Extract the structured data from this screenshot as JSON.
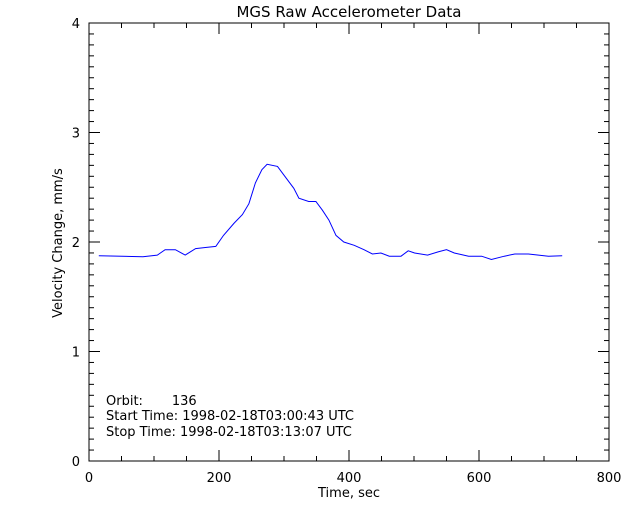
{
  "chart_data": {
    "type": "line",
    "title": "MGS Raw Accelerometer Data",
    "xlabel": "Time, sec",
    "ylabel": "Velocity Change, mm/s",
    "xlim": [
      0,
      800
    ],
    "ylim": [
      0,
      4
    ],
    "x_ticks": [
      "0",
      "200",
      "400",
      "600",
      "800"
    ],
    "y_ticks": [
      "0",
      "1",
      "2",
      "3",
      "4"
    ],
    "grid": false,
    "line_color": "#0000ff",
    "annotations": [
      "Orbit:       136",
      "Start Time: 1998-02-18T03:00:43 UTC",
      "Stop Time: 1998-02-18T03:13:07 UTC"
    ],
    "series": [
      {
        "x": [
          15,
          83,
          105,
          117,
          133,
          148,
          164,
          179,
          195,
          207,
          223,
          236,
          246,
          256,
          266,
          274,
          290,
          300,
          315,
          323,
          338,
          349,
          359,
          369,
          380,
          392,
          408,
          423,
          436,
          449,
          462,
          480,
          491,
          501,
          521,
          537,
          550,
          562,
          584,
          604,
          619,
          639,
          655,
          676,
          707,
          728
        ],
        "y": [
          1.875,
          1.866,
          1.88,
          1.93,
          1.93,
          1.88,
          1.94,
          1.95,
          1.96,
          2.06,
          2.17,
          2.25,
          2.35,
          2.54,
          2.66,
          2.71,
          2.69,
          2.61,
          2.49,
          2.4,
          2.37,
          2.37,
          2.29,
          2.2,
          2.06,
          2.0,
          1.97,
          1.93,
          1.89,
          1.9,
          1.87,
          1.87,
          1.92,
          1.9,
          1.88,
          1.91,
          1.93,
          1.9,
          1.87,
          1.87,
          1.84,
          1.87,
          1.89,
          1.89,
          1.87,
          1.875
        ]
      }
    ]
  }
}
